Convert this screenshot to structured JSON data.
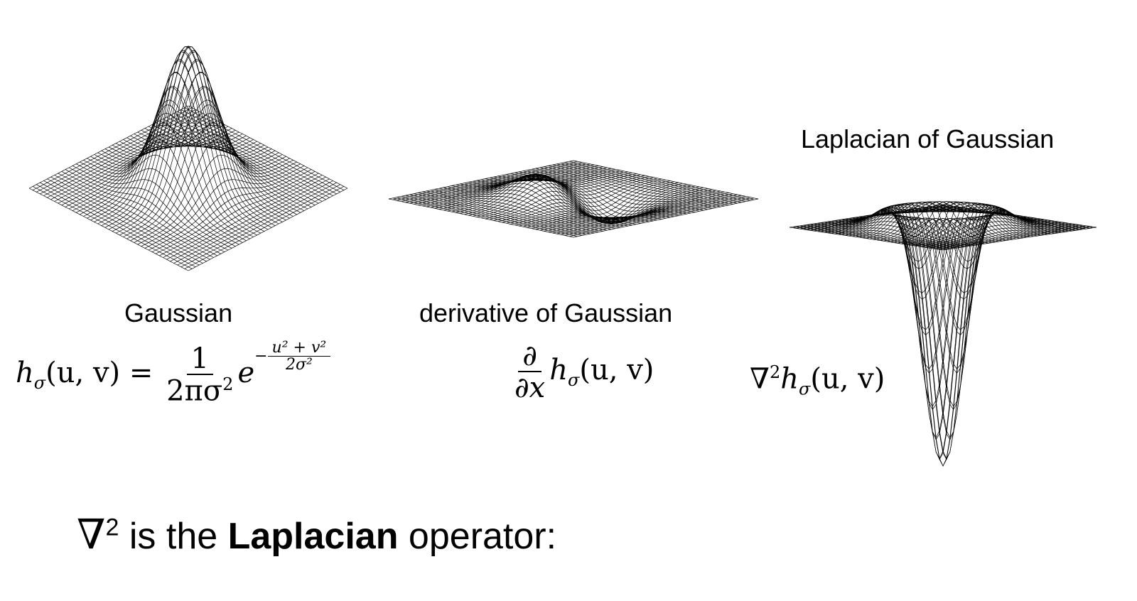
{
  "panels": [
    {
      "id": "gaussian",
      "label": "Gaussian",
      "formula": {
        "lhs": "h",
        "lhs_sub": "σ",
        "lhs_args": "(u, v) =",
        "frac_num": "1",
        "frac_den": "2πσ",
        "frac_den_sup": "2",
        "exp_base": "e",
        "exp_sign": "−",
        "exp_num": "u² + v²",
        "exp_den": "2σ²"
      }
    },
    {
      "id": "derivative",
      "label": "derivative of Gaussian",
      "formula": {
        "frac_num": "∂",
        "frac_den": "∂x",
        "rhs": "h",
        "rhs_sub": "σ",
        "rhs_args": "(u, v)"
      }
    },
    {
      "id": "laplacian",
      "label": "Laplacian of Gaussian",
      "formula": {
        "op": "∇",
        "op_sup": "2",
        "rhs": "h",
        "rhs_sub": "σ",
        "rhs_args": "(u, v)"
      }
    }
  ],
  "footer": {
    "nabla": "∇",
    "nabla_sup": "2",
    "text_before": " is the ",
    "bold": "Laplacian",
    "text_after": " operator:"
  },
  "colors": {
    "mesh": "#000000",
    "background": "#ffffff"
  }
}
